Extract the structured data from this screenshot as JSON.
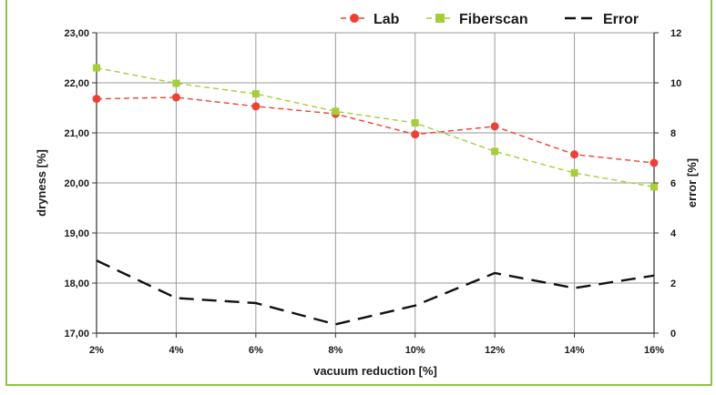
{
  "chart_data": {
    "type": "line",
    "title": "",
    "categories": [
      "2%",
      "4%",
      "6%",
      "8%",
      "10%",
      "12%",
      "14%",
      "16%"
    ],
    "xlabel": "vacuum reduction [%]",
    "ylabel": "dryness [%]",
    "y2label": "error [%]",
    "ylim": [
      17,
      23
    ],
    "y2lim": [
      0,
      12
    ],
    "yticks": [
      "17,00",
      "18,00",
      "19,00",
      "20,00",
      "21,00",
      "22,00",
      "23,00"
    ],
    "y2ticks": [
      "0",
      "2",
      "4",
      "6",
      "8",
      "10",
      "12"
    ],
    "grid": true,
    "legend_position": "top-right",
    "series": [
      {
        "name": "Lab",
        "axis": "left",
        "color": "#ee4035",
        "marker": "circle",
        "line": "dashed",
        "values": [
          21.68,
          21.71,
          21.53,
          21.38,
          20.97,
          21.13,
          20.57,
          20.4
        ]
      },
      {
        "name": "Fiberscan",
        "axis": "left",
        "color": "#a6ce39",
        "marker": "square",
        "line": "dashed",
        "values": [
          22.3,
          21.99,
          21.78,
          21.43,
          21.2,
          20.63,
          20.2,
          19.92
        ]
      },
      {
        "name": "Error",
        "axis": "right",
        "color": "#111111",
        "marker": "none",
        "line": "long-dash",
        "values": [
          2.9,
          1.4,
          1.2,
          0.35,
          1.1,
          2.4,
          1.8,
          2.3
        ]
      }
    ]
  }
}
